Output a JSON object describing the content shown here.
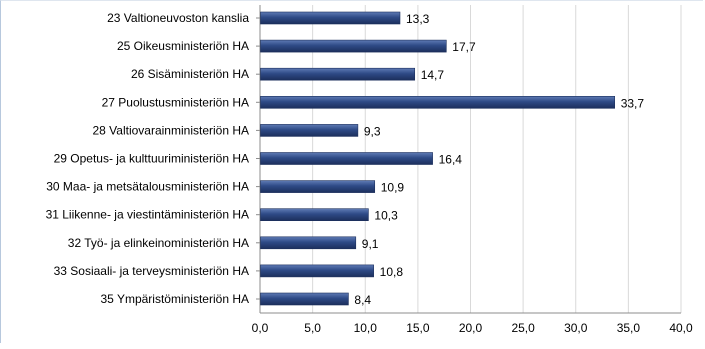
{
  "chart_data": {
    "type": "bar",
    "orientation": "horizontal",
    "title": "",
    "xlabel": "",
    "ylabel": "",
    "categories": [
      "23 Valtioneuvoston kanslia",
      "25 Oikeusministeriön HA",
      "26 Sisäministeriön HA",
      "27 Puolustusministeriön HA",
      "28 Valtiovarainministeriön HA",
      "29 Opetus- ja kulttuuriministeriön HA",
      "30 Maa- ja metsätalousministeriön HA",
      "31 Liikenne- ja viestintäministeriön HA",
      "32 Työ- ja elinkeinoministeriön HA",
      "33 Sosiaali- ja terveysministeriön HA",
      "35 Ympäristöministeriön HA"
    ],
    "values": [
      13.3,
      17.7,
      14.7,
      33.7,
      9.3,
      16.4,
      10.9,
      10.3,
      9.1,
      10.8,
      8.4
    ],
    "value_labels": [
      "13,3",
      "17,7",
      "14,7",
      "33,7",
      "9,3",
      "16,4",
      "10,9",
      "10,3",
      "9,1",
      "10,8",
      "8,4"
    ],
    "x_ticks": [
      0,
      5,
      10,
      15,
      20,
      25,
      30,
      35,
      40
    ],
    "x_tick_labels": [
      "0,0",
      "5,0",
      "10,0",
      "15,0",
      "20,0",
      "25,0",
      "30,0",
      "35,0",
      "40,0"
    ],
    "xlim": [
      0,
      40
    ],
    "grid": "vertical",
    "legend": "none",
    "colors": {
      "bar": "#2e4a86",
      "bar_light": "#5f7bb5",
      "bar_dark": "#1c2f5c",
      "grid": "#d9d9d9",
      "text": "#000000"
    }
  }
}
